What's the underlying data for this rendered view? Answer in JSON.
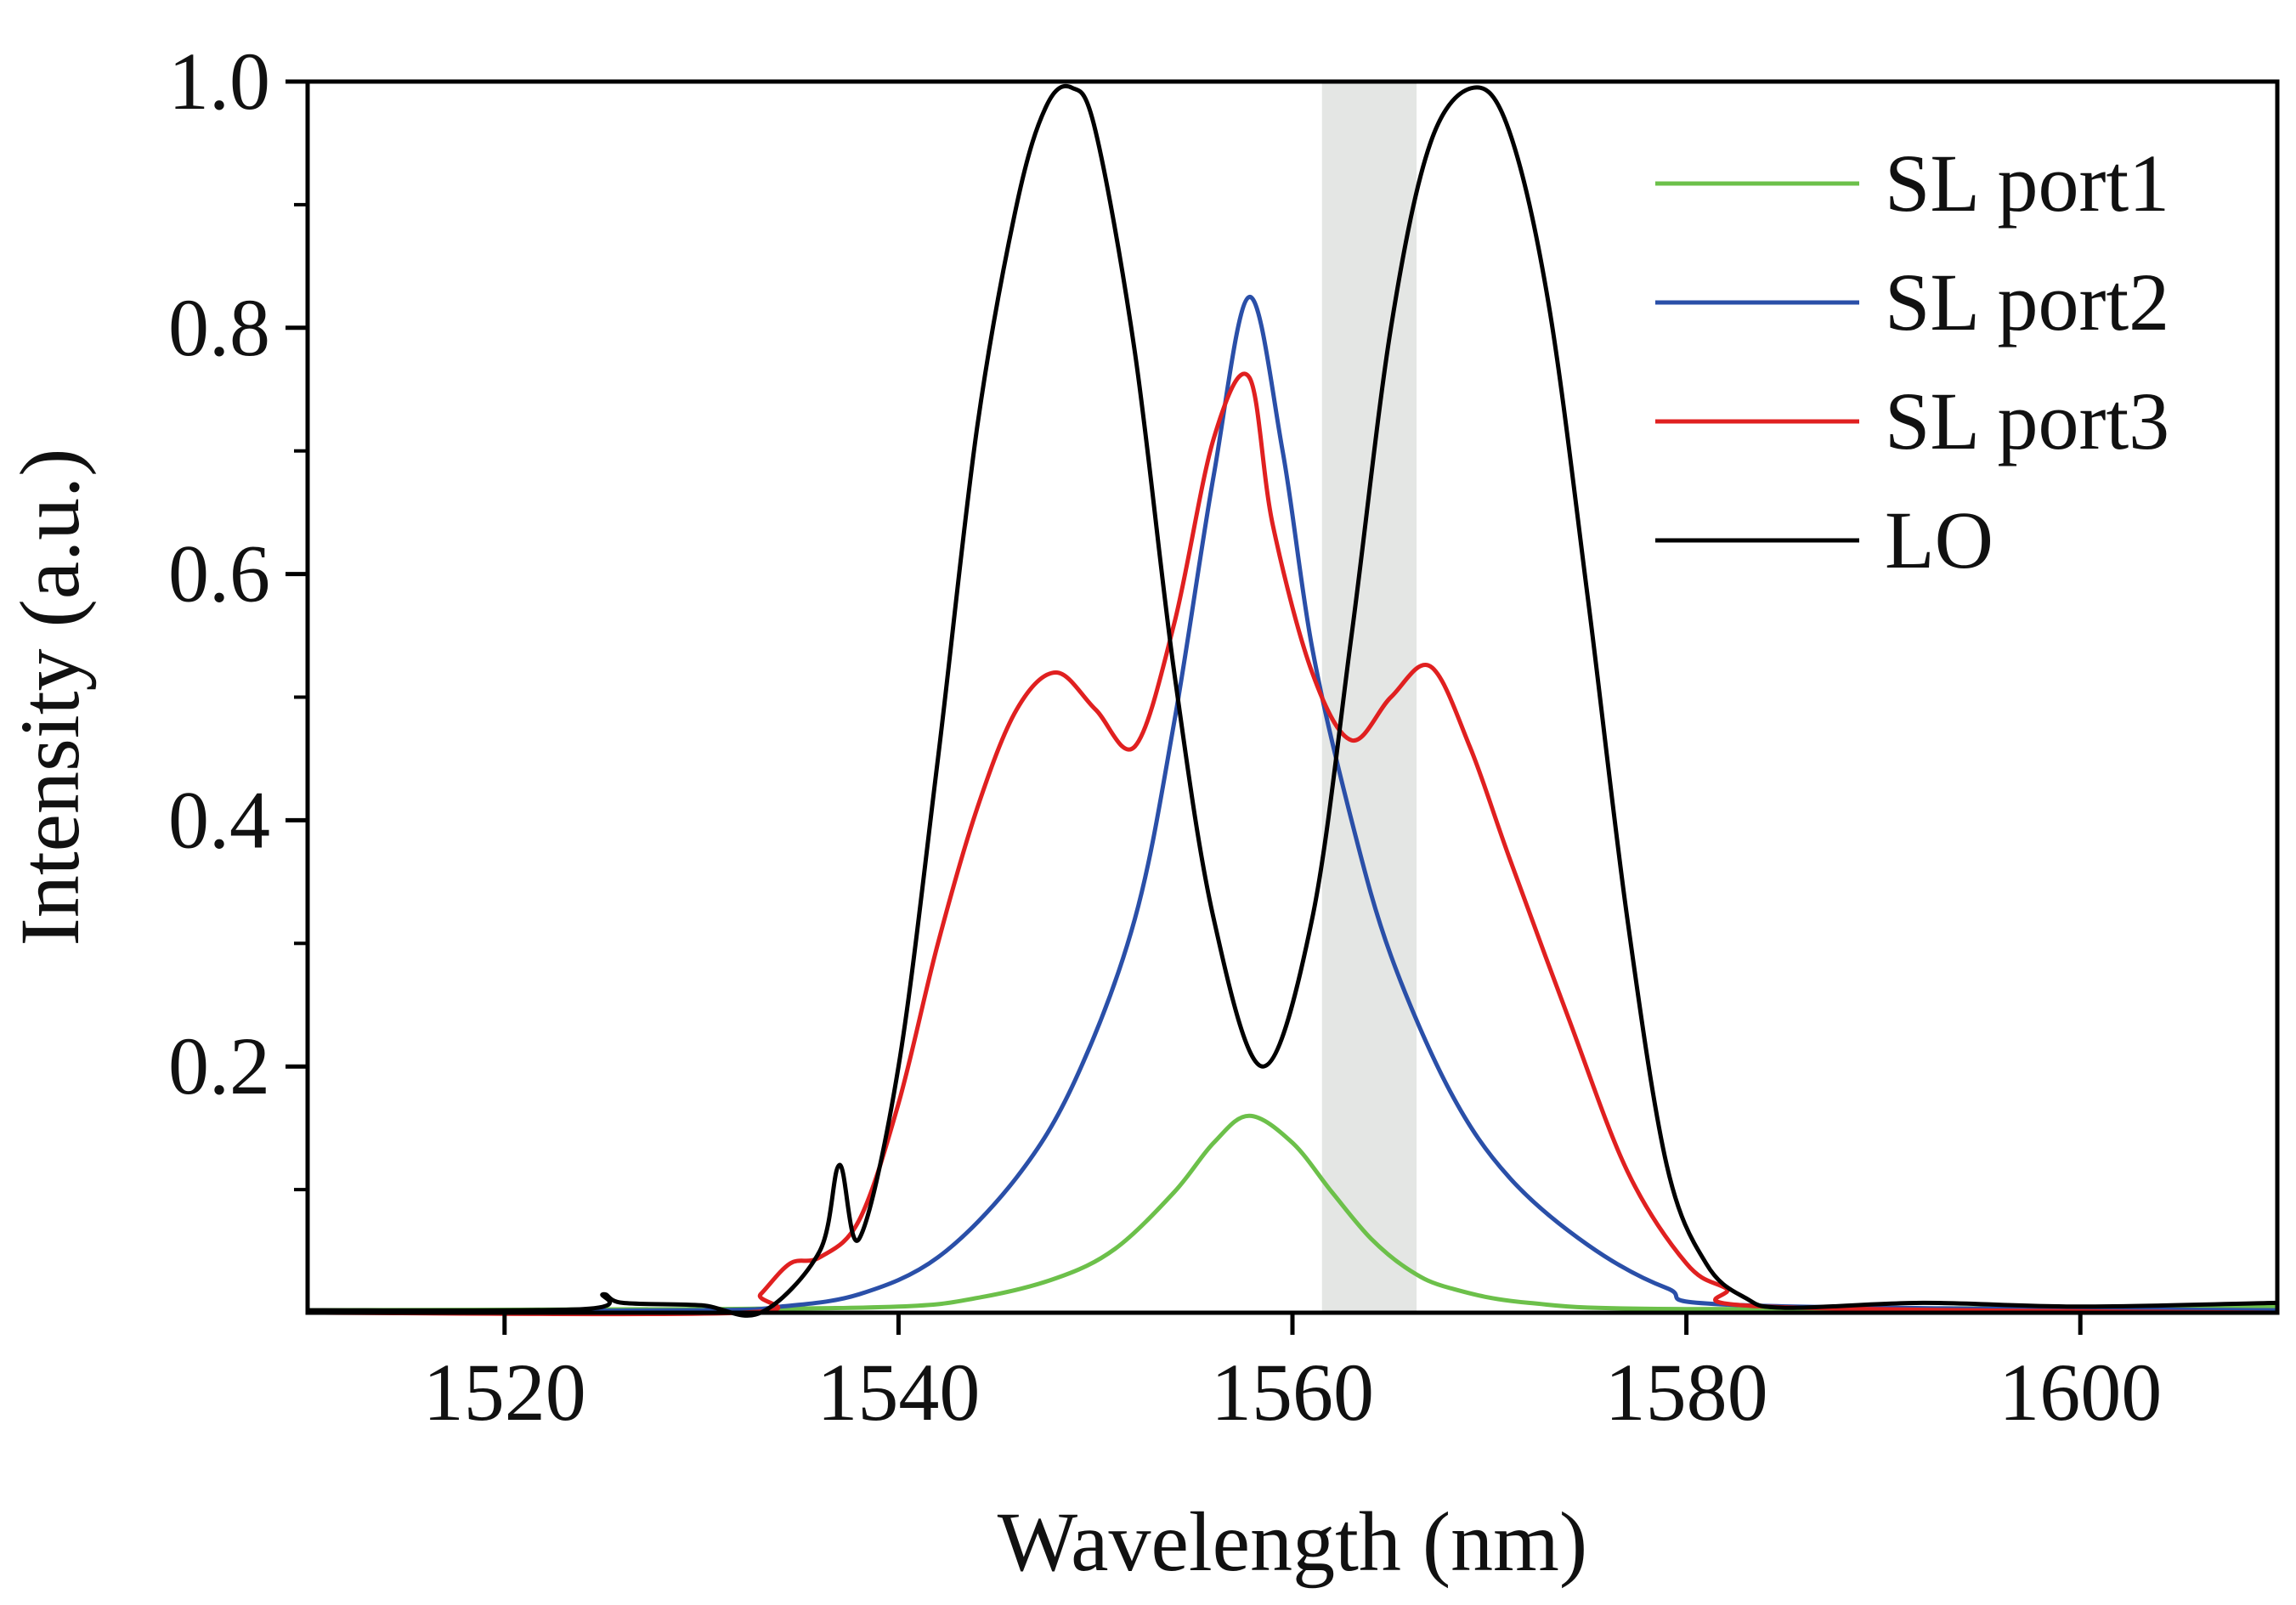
{
  "chart_data": {
    "type": "line",
    "xlabel": "Wavelength (nm)",
    "ylabel": "Intensity (a.u.)",
    "xlim": [
      1510,
      1610
    ],
    "ylim": [
      0,
      1.0
    ],
    "x_ticks": [
      1520,
      1540,
      1560,
      1580,
      1600
    ],
    "x_tick_labels": [
      "1520",
      "1540",
      "1560",
      "1580",
      "1600"
    ],
    "y_ticks": [
      0.2,
      0.4,
      0.6,
      0.8,
      1.0
    ],
    "y_tick_labels": [
      "0.2",
      "0.4",
      "0.6",
      "0.8",
      "1.0"
    ],
    "grid": false,
    "legend_position": "top-right",
    "highlight_band": {
      "x_start": 1561.5,
      "x_end": 1566.3,
      "color": "#e4e6e4"
    },
    "series": [
      {
        "name": "SL port1",
        "color": "#6cc04a",
        "x": [
          1510,
          1530,
          1540,
          1544,
          1548,
          1551,
          1554,
          1556,
          1557.8,
          1560,
          1562,
          1564,
          1566,
          1568,
          1572,
          1580,
          1610
        ],
        "y": [
          0.002,
          0.003,
          0.005,
          0.012,
          0.028,
          0.052,
          0.098,
          0.138,
          0.16,
          0.138,
          0.098,
          0.06,
          0.034,
          0.02,
          0.008,
          0.003,
          0.005
        ]
      },
      {
        "name": "SL port2",
        "color": "#2a4fa8",
        "x": [
          1510,
          1530,
          1534,
          1538,
          1542,
          1546,
          1549,
          1552,
          1554,
          1556,
          1557.8,
          1559.5,
          1561,
          1563,
          1565,
          1568,
          1571,
          1575,
          1579,
          1583,
          1610
        ],
        "y": [
          0.001,
          0.002,
          0.005,
          0.015,
          0.045,
          0.11,
          0.19,
          0.32,
          0.48,
          0.68,
          0.825,
          0.7,
          0.54,
          0.4,
          0.29,
          0.18,
          0.11,
          0.055,
          0.02,
          0.006,
          0.002
        ]
      },
      {
        "name": "SL port3",
        "color": "#e02020",
        "x": [
          1510,
          1532,
          1533,
          1534.5,
          1536,
          1538,
          1540,
          1542,
          1544,
          1546,
          1548,
          1550,
          1552,
          1554,
          1556,
          1557.8,
          1559,
          1561,
          1563,
          1565,
          1567,
          1569,
          1571,
          1574,
          1577,
          1580,
          1582,
          1584,
          1610
        ],
        "y": [
          0.0,
          0.0,
          0.015,
          0.04,
          0.045,
          0.075,
          0.17,
          0.3,
          0.41,
          0.49,
          0.52,
          0.49,
          0.46,
          0.56,
          0.71,
          0.76,
          0.64,
          0.52,
          0.465,
          0.5,
          0.525,
          0.46,
          0.37,
          0.24,
          0.115,
          0.04,
          0.02,
          0.005,
          0.0
        ]
      },
      {
        "name": "LO",
        "color": "#000000",
        "x": [
          1510,
          1524,
          1525,
          1526,
          1530,
          1533,
          1536,
          1537,
          1538,
          1540,
          1542,
          1544,
          1546,
          1547.5,
          1548.8,
          1550,
          1552,
          1554,
          1556,
          1558.5,
          1561,
          1563,
          1565,
          1567,
          1569.2,
          1571,
          1573,
          1575,
          1577,
          1579,
          1581,
          1583,
          1585,
          1592,
          1600,
          1610
        ],
        "y": [
          0.002,
          0.003,
          0.015,
          0.008,
          0.006,
          0.0,
          0.05,
          0.12,
          0.06,
          0.2,
          0.45,
          0.72,
          0.9,
          0.98,
          0.995,
          0.96,
          0.78,
          0.52,
          0.32,
          0.2,
          0.32,
          0.55,
          0.8,
          0.95,
          0.995,
          0.96,
          0.82,
          0.58,
          0.32,
          0.12,
          0.04,
          0.012,
          0.004,
          0.008,
          0.005,
          0.008
        ]
      }
    ]
  }
}
